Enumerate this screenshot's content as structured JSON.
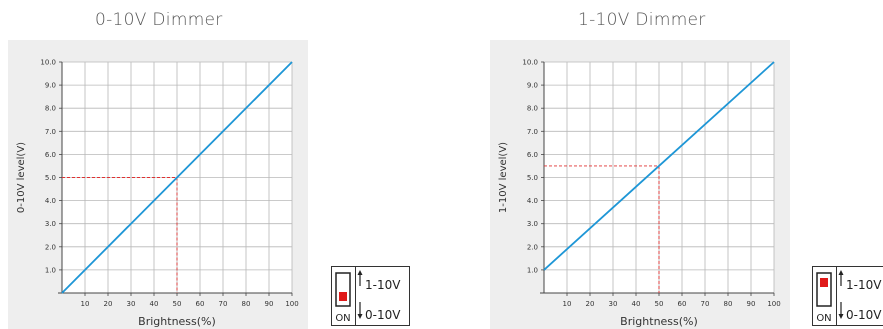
{
  "chart_data": [
    {
      "type": "line",
      "title": "0-10V Dimmer",
      "xlabel": "Brightness(%)",
      "ylabel": "0-10V level(V)",
      "xlim": [
        0,
        100
      ],
      "ylim": [
        0,
        10
      ],
      "x_ticks": [
        "10",
        "20",
        "30",
        "40",
        "50",
        "60",
        "70",
        "80",
        "90",
        "100"
      ],
      "y_ticks": [
        "1.0",
        "2.0",
        "3.0",
        "4.0",
        "5.0",
        "6.0",
        "7.0",
        "8.0",
        "9.0",
        "10.0"
      ],
      "grid": true,
      "series": [
        {
          "color": "#1e96d6",
          "x": [
            0,
            100
          ],
          "y": [
            0.0,
            10.0
          ]
        }
      ],
      "annotation": {
        "x": 50,
        "y": 5.0,
        "style": "dashed",
        "color": "#e03030"
      }
    },
    {
      "type": "line",
      "title": "1-10V Dimmer",
      "xlabel": "Brightness(%)",
      "ylabel": "1-10V level(V)",
      "xlim": [
        0,
        100
      ],
      "ylim": [
        0,
        10
      ],
      "x_ticks": [
        "10",
        "20",
        "30",
        "40",
        "50",
        "60",
        "70",
        "80",
        "90",
        "100"
      ],
      "y_ticks": [
        "1.0",
        "2.0",
        "3.0",
        "4.0",
        "5.0",
        "6.0",
        "7.0",
        "8.0",
        "9.0",
        "10.0"
      ],
      "grid": true,
      "series": [
        {
          "color": "#1e96d6",
          "x": [
            0,
            100
          ],
          "y": [
            1.0,
            10.0
          ]
        }
      ],
      "annotation": {
        "x": 50,
        "y": 5.5,
        "style": "dashed",
        "color": "#e03030"
      }
    }
  ],
  "switches": [
    {
      "top_label": "1-10V",
      "bottom_label": "0-10V",
      "on_label": "ON",
      "position": "down",
      "indicator_color": "#e01a1a"
    },
    {
      "top_label": "1-10V",
      "bottom_label": "0-10V",
      "on_label": "ON",
      "position": "up",
      "indicator_color": "#e01a1a"
    }
  ]
}
